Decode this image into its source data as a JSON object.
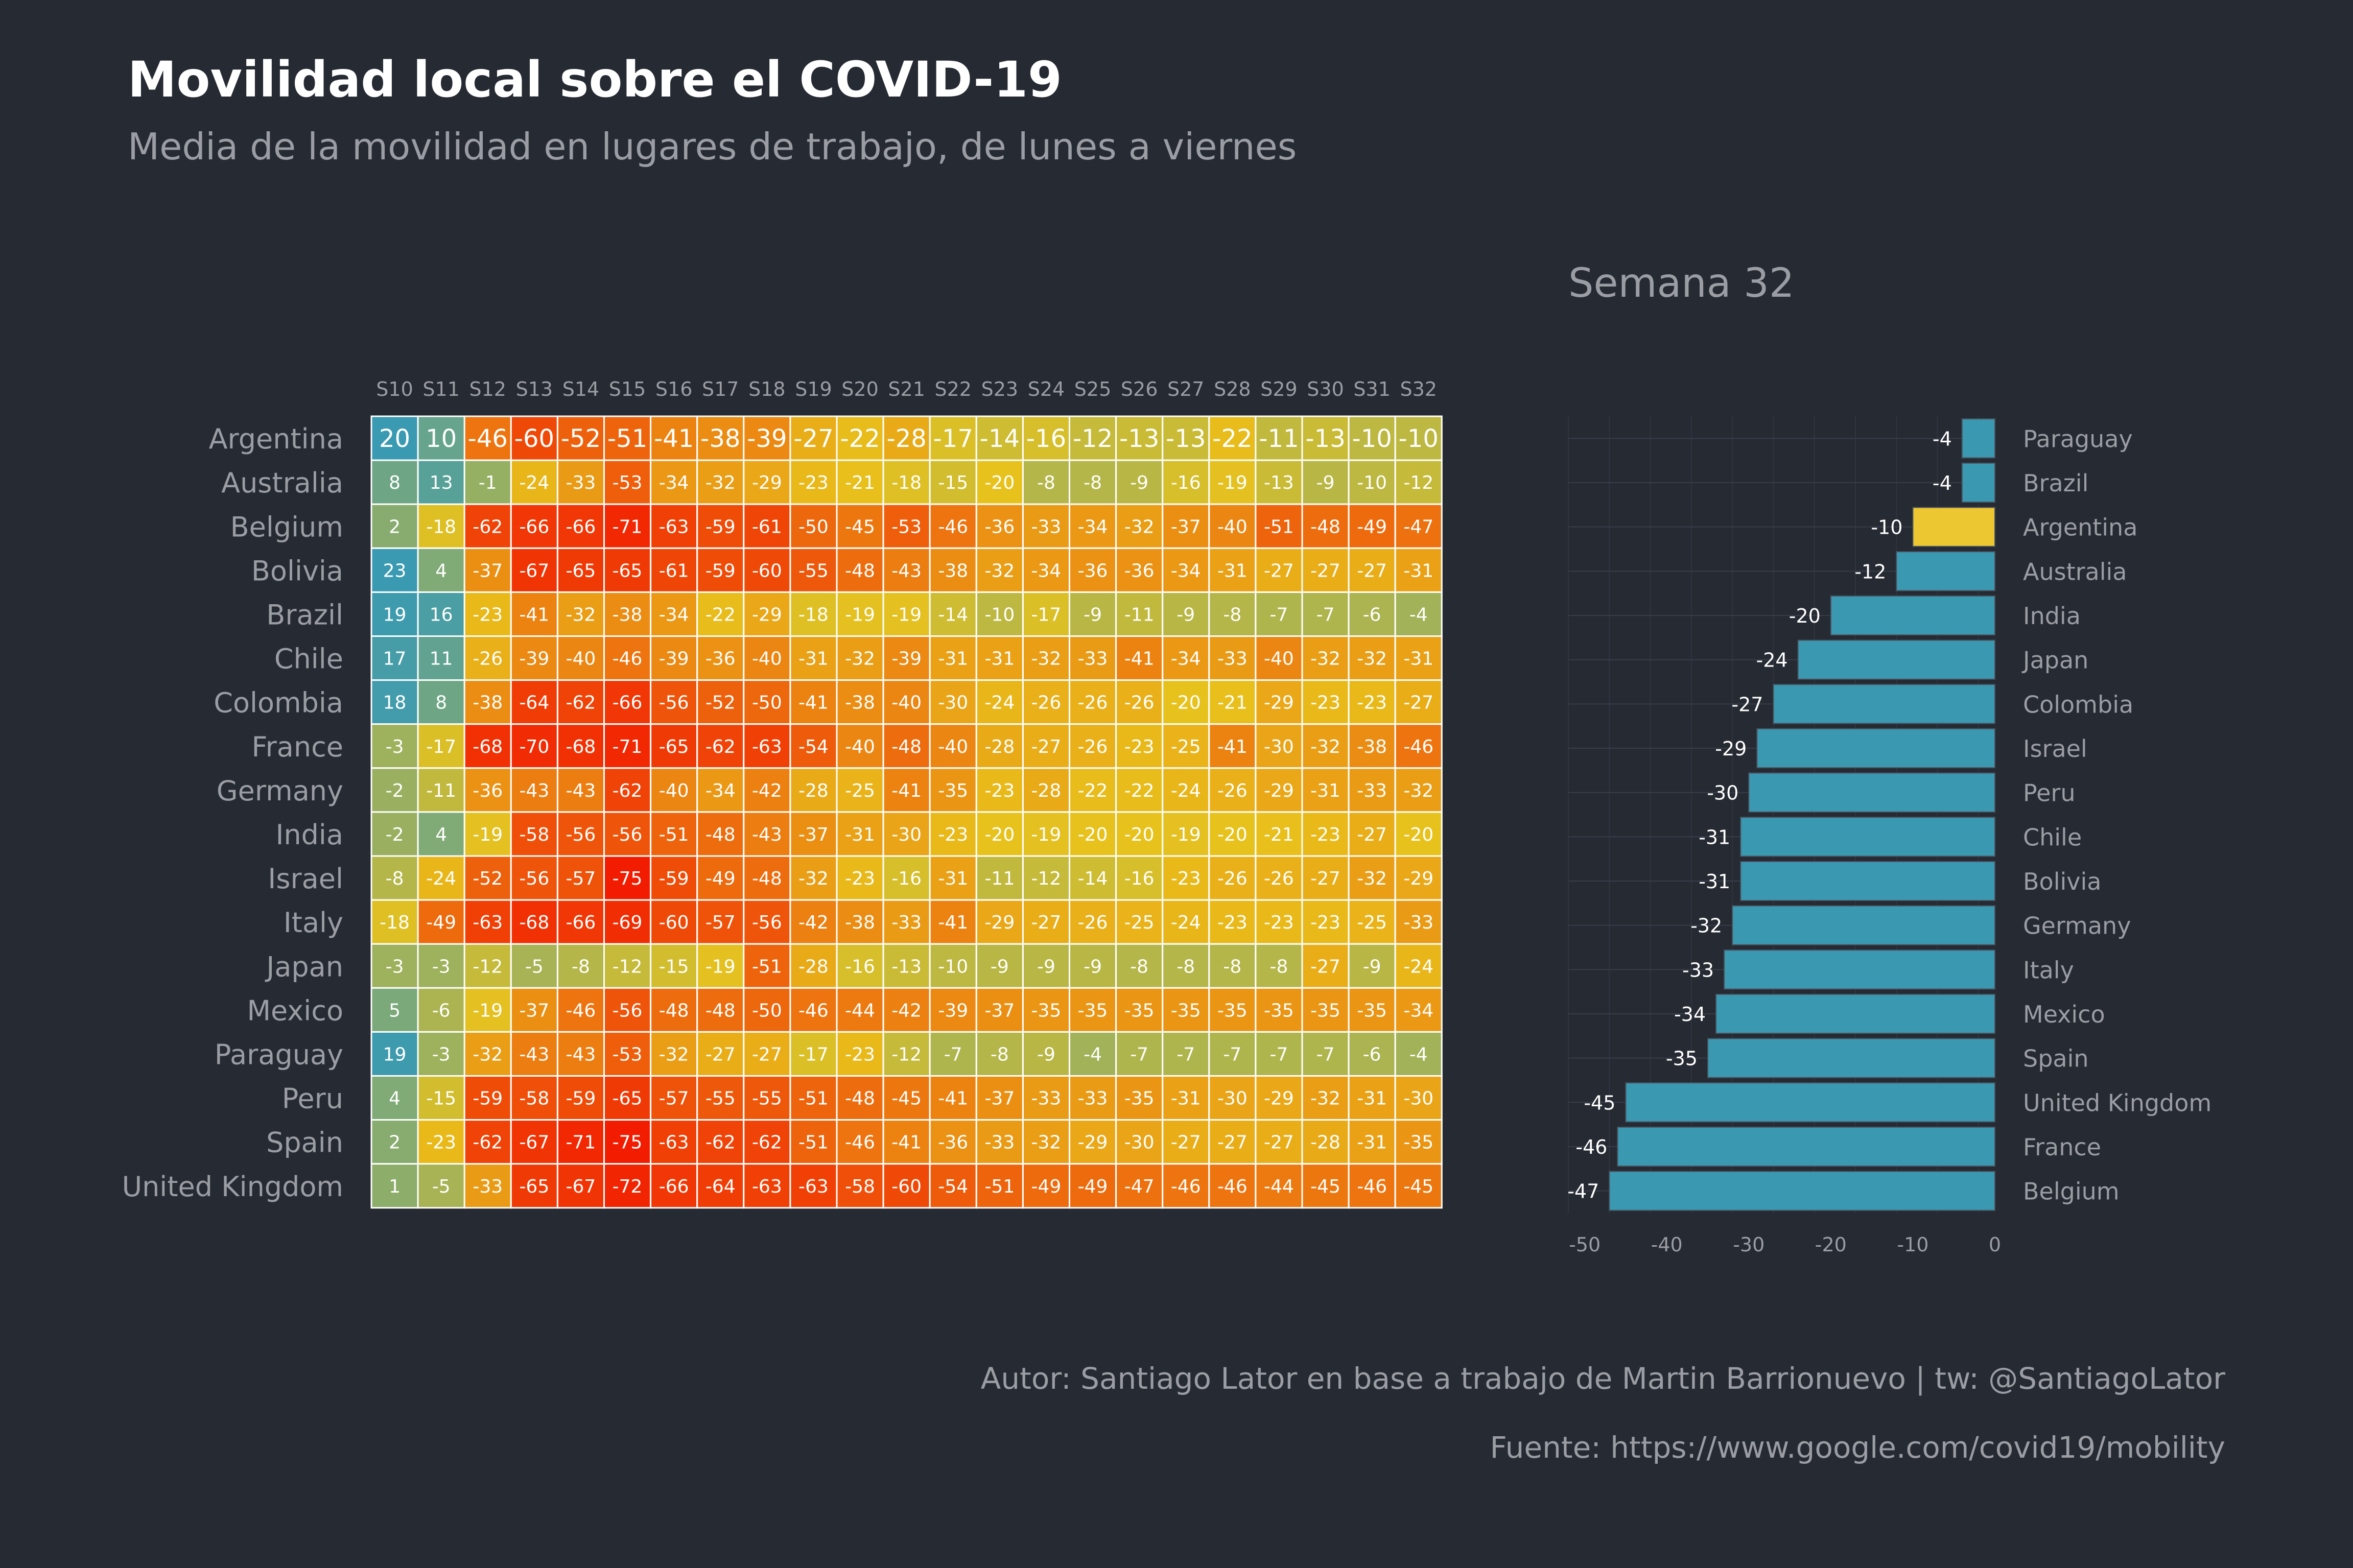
{
  "title": "Movilidad local sobre el COVID-19",
  "subtitle": "Media de la movilidad en lugares de trabajo, de lunes a viernes",
  "bar_title": "Semana 32",
  "caption_author": "Autor: Santiago Lator en base a trabajo de Martin Barrionuevo | tw: @SantiagoLator",
  "caption_source": "Fuente: https://www.google.com/covid19/mobility",
  "colors": {
    "background": "#262a33",
    "bar_default": "#3a98b0",
    "bar_highlight": "#ecc731",
    "heat_low": "#f21c00",
    "heat_mid": "#e8c21c",
    "heat_high": "#3a9ab2"
  },
  "chart_data": [
    {
      "type": "heatmap",
      "x_labels": [
        "S10",
        "S11",
        "S12",
        "S13",
        "S14",
        "S15",
        "S16",
        "S17",
        "S18",
        "S19",
        "S20",
        "S21",
        "S22",
        "S23",
        "S24",
        "S25",
        "S26",
        "S27",
        "S28",
        "S29",
        "S30",
        "S31",
        "S32"
      ],
      "y_labels": [
        "Argentina",
        "Australia",
        "Belgium",
        "Bolivia",
        "Brazil",
        "Chile",
        "Colombia",
        "France",
        "Germany",
        "India",
        "Israel",
        "Italy",
        "Japan",
        "Mexico",
        "Paraguay",
        "Peru",
        "Spain",
        "United Kingdom"
      ],
      "values": [
        [
          20,
          10,
          -46,
          -60,
          -52,
          -51,
          -41,
          -38,
          -39,
          -27,
          -22,
          -28,
          -17,
          -14,
          -16,
          -12,
          -13,
          -13,
          -22,
          -11,
          -13,
          -10,
          -10
        ],
        [
          8,
          13,
          -1,
          -24,
          -33,
          -53,
          -34,
          -32,
          -29,
          -23,
          -21,
          -18,
          -15,
          -20,
          -8,
          -8,
          -9,
          -16,
          -19,
          -13,
          -9,
          -10,
          -12
        ],
        [
          2,
          -18,
          -62,
          -66,
          -66,
          -71,
          -63,
          -59,
          -61,
          -50,
          -45,
          -53,
          -46,
          -36,
          -33,
          -34,
          -32,
          -37,
          -40,
          -51,
          -48,
          -49,
          -47
        ],
        [
          23,
          4,
          -37,
          -67,
          -65,
          -65,
          -61,
          -59,
          -60,
          -55,
          -48,
          -43,
          -38,
          -32,
          -34,
          -36,
          -36,
          -34,
          -31,
          -27,
          -27,
          -27,
          -31
        ],
        [
          19,
          16,
          -23,
          -41,
          -32,
          -38,
          -34,
          -22,
          -29,
          -18,
          -19,
          -19,
          -14,
          -10,
          -17,
          -9,
          -11,
          -9,
          -8,
          -7,
          -7,
          -6,
          -4
        ],
        [
          17,
          11,
          -26,
          -39,
          -40,
          -46,
          -39,
          -36,
          -40,
          -31,
          -32,
          -39,
          -31,
          -31,
          -32,
          -33,
          -41,
          -34,
          -33,
          -40,
          -32,
          -32,
          -31
        ],
        [
          18,
          8,
          -38,
          -64,
          -62,
          -66,
          -56,
          -52,
          -50,
          -41,
          -38,
          -40,
          -30,
          -24,
          -26,
          -26,
          -26,
          -20,
          -21,
          -29,
          -23,
          -23,
          -27
        ],
        [
          -3,
          -17,
          -68,
          -70,
          -68,
          -71,
          -65,
          -62,
          -63,
          -54,
          -40,
          -48,
          -40,
          -28,
          -27,
          -26,
          -23,
          -25,
          -41,
          -30,
          -32,
          -38,
          -46
        ],
        [
          -2,
          -11,
          -36,
          -43,
          -43,
          -62,
          -40,
          -34,
          -42,
          -28,
          -25,
          -41,
          -35,
          -23,
          -28,
          -22,
          -22,
          -24,
          -26,
          -29,
          -31,
          -33,
          -32
        ],
        [
          -2,
          4,
          -19,
          -58,
          -56,
          -56,
          -51,
          -48,
          -43,
          -37,
          -31,
          -30,
          -23,
          -20,
          -19,
          -20,
          -20,
          -19,
          -20,
          -21,
          -23,
          -27,
          -20
        ],
        [
          -8,
          -24,
          -52,
          -56,
          -57,
          -75,
          -59,
          -49,
          -48,
          -32,
          -23,
          -16,
          -31,
          -11,
          -12,
          -14,
          -16,
          -23,
          -26,
          -26,
          -27,
          -32,
          -29
        ],
        [
          -18,
          -49,
          -63,
          -68,
          -66,
          -69,
          -60,
          -57,
          -56,
          -42,
          -38,
          -33,
          -41,
          -29,
          -27,
          -26,
          -25,
          -24,
          -23,
          -23,
          -23,
          -25,
          -33
        ],
        [
          -3,
          -3,
          -12,
          -5,
          -8,
          -12,
          -15,
          -19,
          -51,
          -28,
          -16,
          -13,
          -10,
          -9,
          -9,
          -9,
          -8,
          -8,
          -8,
          -8,
          -27,
          -9,
          -24
        ],
        [
          5,
          -6,
          -19,
          -37,
          -46,
          -56,
          -48,
          -48,
          -50,
          -46,
          -44,
          -42,
          -39,
          -37,
          -35,
          -35,
          -35,
          -35,
          -35,
          -35,
          -35,
          -35,
          -34
        ],
        [
          19,
          -3,
          -32,
          -43,
          -43,
          -53,
          -32,
          -27,
          -27,
          -17,
          -23,
          -12,
          -7,
          -8,
          -9,
          -4,
          -7,
          -7,
          -7,
          -7,
          -7,
          -6,
          -4
        ],
        [
          4,
          -15,
          -59,
          -58,
          -59,
          -65,
          -57,
          -55,
          -55,
          -51,
          -48,
          -45,
          -41,
          -37,
          -33,
          -33,
          -35,
          -31,
          -30,
          -29,
          -32,
          -31,
          -30
        ],
        [
          2,
          -23,
          -62,
          -67,
          -71,
          -75,
          -63,
          -62,
          -62,
          -51,
          -46,
          -41,
          -36,
          -33,
          -32,
          -29,
          -30,
          -27,
          -27,
          -27,
          -28,
          -31,
          -35
        ],
        [
          1,
          -5,
          -33,
          -65,
          -67,
          -72,
          -66,
          -64,
          -63,
          -63,
          -58,
          -60,
          -54,
          -51,
          -49,
          -49,
          -47,
          -46,
          -46,
          -44,
          -45,
          -46,
          -45
        ]
      ]
    },
    {
      "type": "bar",
      "orientation": "horizontal",
      "categories": [
        "Paraguay",
        "Brazil",
        "Argentina",
        "Australia",
        "India",
        "Japan",
        "Colombia",
        "Israel",
        "Peru",
        "Chile",
        "Bolivia",
        "Germany",
        "Italy",
        "Mexico",
        "Spain",
        "United Kingdom",
        "France",
        "Belgium"
      ],
      "values": [
        -4,
        -4,
        -10,
        -12,
        -20,
        -24,
        -27,
        -29,
        -30,
        -31,
        -31,
        -32,
        -33,
        -34,
        -35,
        -45,
        -46,
        -47
      ],
      "highlight": "Argentina",
      "x_ticks": [
        -50,
        -40,
        -30,
        -20,
        -10,
        0
      ],
      "xlim": [
        -52,
        0
      ],
      "grid": true
    }
  ]
}
